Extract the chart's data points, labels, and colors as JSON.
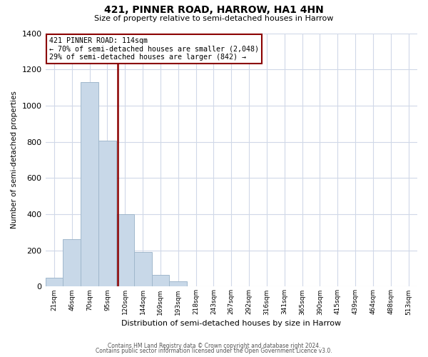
{
  "title": "421, PINNER ROAD, HARROW, HA1 4HN",
  "subtitle": "Size of property relative to semi-detached houses in Harrow",
  "xlabel": "Distribution of semi-detached houses by size in Harrow",
  "ylabel": "Number of semi-detached properties",
  "bar_labels": [
    "21sqm",
    "46sqm",
    "70sqm",
    "95sqm",
    "120sqm",
    "144sqm",
    "169sqm",
    "193sqm",
    "218sqm",
    "243sqm",
    "267sqm",
    "292sqm",
    "316sqm",
    "341sqm",
    "365sqm",
    "390sqm",
    "415sqm",
    "439sqm",
    "464sqm",
    "488sqm",
    "513sqm"
  ],
  "bar_values": [
    50,
    260,
    1130,
    805,
    400,
    190,
    65,
    30,
    0,
    0,
    0,
    0,
    0,
    0,
    0,
    0,
    0,
    0,
    0,
    0,
    0
  ],
  "bar_color": "#c8d8e8",
  "bar_edgecolor": "#a0b8cc",
  "property_label": "421 PINNER ROAD: 114sqm",
  "annotation_line1": "← 70% of semi-detached houses are smaller (2,048)",
  "annotation_line2": "29% of semi-detached houses are larger (842) →",
  "line_color": "#8b0000",
  "box_edgecolor": "#8b0000",
  "ylim": [
    0,
    1400
  ],
  "yticks": [
    0,
    200,
    400,
    600,
    800,
    1000,
    1200,
    1400
  ],
  "footer_line1": "Contains HM Land Registry data © Crown copyright and database right 2024.",
  "footer_line2": "Contains public sector information licensed under the Open Government Licence v3.0.",
  "background_color": "#ffffff",
  "grid_color": "#d0d8e8",
  "title_fontsize": 10,
  "subtitle_fontsize": 8,
  "ylabel_fontsize": 7.5,
  "xlabel_fontsize": 8
}
